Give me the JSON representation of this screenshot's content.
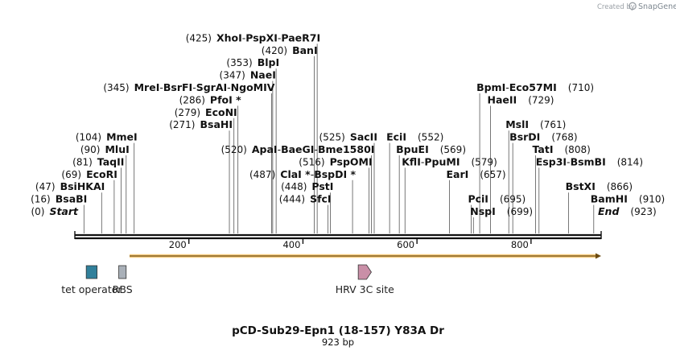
{
  "brand": {
    "created_by": "Created by",
    "name": "SnapGene",
    "color": "#9aa0a6"
  },
  "map": {
    "length": 923,
    "title": "pCD-Sub29-Epn1 (18-157) Y83A Dr",
    "subtitle": "923 bp",
    "ticks": [
      "200",
      "400",
      "600",
      "800"
    ],
    "tick_values": [
      200,
      400,
      600,
      800
    ]
  },
  "features": [
    {
      "name": "tet operator",
      "start": 20,
      "end": 39,
      "type": "box",
      "color": "#31809b"
    },
    {
      "name": "RBS",
      "start": 77,
      "end": 90,
      "type": "box",
      "color": "#a9b0b8"
    },
    {
      "name": "HRV 3C site",
      "start": 497,
      "end": 520,
      "type": "arrow",
      "color": "#c98fa7"
    },
    {
      "name": "",
      "start": 96,
      "end": 923,
      "type": "orf",
      "color": "#f1b23d"
    }
  ],
  "sites": [
    {
      "pos": "(0)",
      "name": "Start",
      "special": true,
      "at": 0,
      "line": 0,
      "side": "left"
    },
    {
      "pos": "(16)",
      "name": "BsaBI",
      "at": 16,
      "line": 1,
      "side": "left"
    },
    {
      "pos": "(47)",
      "name": "BsiHKAI",
      "at": 47,
      "line": 2,
      "side": "left"
    },
    {
      "pos": "(69)",
      "name": "EcoRI",
      "at": 69,
      "line": 3,
      "side": "left"
    },
    {
      "pos": "(81)",
      "name": "TaqII",
      "at": 81,
      "line": 4,
      "side": "left"
    },
    {
      "pos": "(90)",
      "name": "MluI",
      "at": 90,
      "line": 5,
      "side": "left"
    },
    {
      "pos": "(104)",
      "name": "MmeI",
      "at": 104,
      "line": 6,
      "side": "left"
    },
    {
      "pos": "(271)",
      "name": "BsaHI",
      "at": 271,
      "line": 7,
      "side": "left"
    },
    {
      "pos": "(279)",
      "name": "EcoNI",
      "at": 279,
      "line": 8,
      "side": "left"
    },
    {
      "pos": "(286)",
      "name": "PfoI *",
      "at": 286,
      "line": 9,
      "side": "left"
    },
    {
      "pos": "(345)",
      "group": [
        "MreI",
        "BsrFI",
        "SgrAI",
        "NgoMIV"
      ],
      "at": 345,
      "line": 10,
      "side": "left"
    },
    {
      "pos": "(347)",
      "name": "NaeI",
      "at": 347,
      "line": 11,
      "side": "left"
    },
    {
      "pos": "(353)",
      "name": "BlpI",
      "at": 353,
      "line": 12,
      "side": "left"
    },
    {
      "pos": "(420)",
      "name": "BanI",
      "at": 420,
      "line": 13,
      "side": "left"
    },
    {
      "pos": "(425)",
      "group": [
        "XhoI",
        "PspXI",
        "PaeR7I"
      ],
      "at": 425,
      "line": 14,
      "side": "left"
    },
    {
      "pos": "(444)",
      "name": "SfcI",
      "at": 444,
      "line": 1,
      "side": "left"
    },
    {
      "pos": "(448)",
      "name": "PstI",
      "at": 448,
      "line": 2,
      "side": "left"
    },
    {
      "pos": "(487)",
      "group": [
        "ClaI *",
        "BspDI *"
      ],
      "at": 487,
      "line": 3,
      "side": "left"
    },
    {
      "pos": "(516)",
      "name": "PspOMI",
      "at": 516,
      "line": 4,
      "side": "left"
    },
    {
      "pos": "(520)",
      "group": [
        "ApaI",
        "BaeGI",
        "Bme1580I"
      ],
      "at": 520,
      "line": 5,
      "side": "left"
    },
    {
      "pos": "(525)",
      "name": "SacII",
      "at": 525,
      "line": 6,
      "side": "left"
    },
    {
      "pos": "(552)",
      "name": "EciI",
      "at": 552,
      "line": 6,
      "side": "right"
    },
    {
      "pos": "(569)",
      "name": "BpuEI",
      "at": 569,
      "line": 5,
      "side": "right"
    },
    {
      "pos": "(579)",
      "group": [
        "KflI",
        "PpuMI"
      ],
      "at": 579,
      "line": 4,
      "side": "right"
    },
    {
      "pos": "(657)",
      "name": "EarI",
      "at": 657,
      "line": 3,
      "side": "right"
    },
    {
      "pos": "(695)",
      "name": "PciI",
      "at": 695,
      "line": 1,
      "side": "right"
    },
    {
      "pos": "(699)",
      "name": "NspI",
      "at": 699,
      "line": 0,
      "side": "right"
    },
    {
      "pos": "(710)",
      "group": [
        "BpmI",
        "Eco57MI"
      ],
      "at": 710,
      "line": 10,
      "side": "right"
    },
    {
      "pos": "(729)",
      "name": "HaeII",
      "at": 729,
      "line": 9,
      "side": "right"
    },
    {
      "pos": "(761)",
      "name": "MslI",
      "at": 761,
      "line": 7,
      "side": "right"
    },
    {
      "pos": "(768)",
      "name": "BsrDI",
      "at": 768,
      "line": 6,
      "side": "right"
    },
    {
      "pos": "(808)",
      "name": "TatI",
      "at": 808,
      "line": 5,
      "side": "right"
    },
    {
      "pos": "(814)",
      "group": [
        "Esp3I",
        "BsmBI"
      ],
      "at": 814,
      "line": 4,
      "side": "right"
    },
    {
      "pos": "(866)",
      "name": "BstXI",
      "at": 866,
      "line": 2,
      "side": "right"
    },
    {
      "pos": "(910)",
      "name": "BamHI",
      "at": 910,
      "line": 1,
      "side": "right"
    },
    {
      "pos": "(923)",
      "name": "End",
      "special": true,
      "at": 923,
      "line": 0,
      "side": "right"
    }
  ]
}
